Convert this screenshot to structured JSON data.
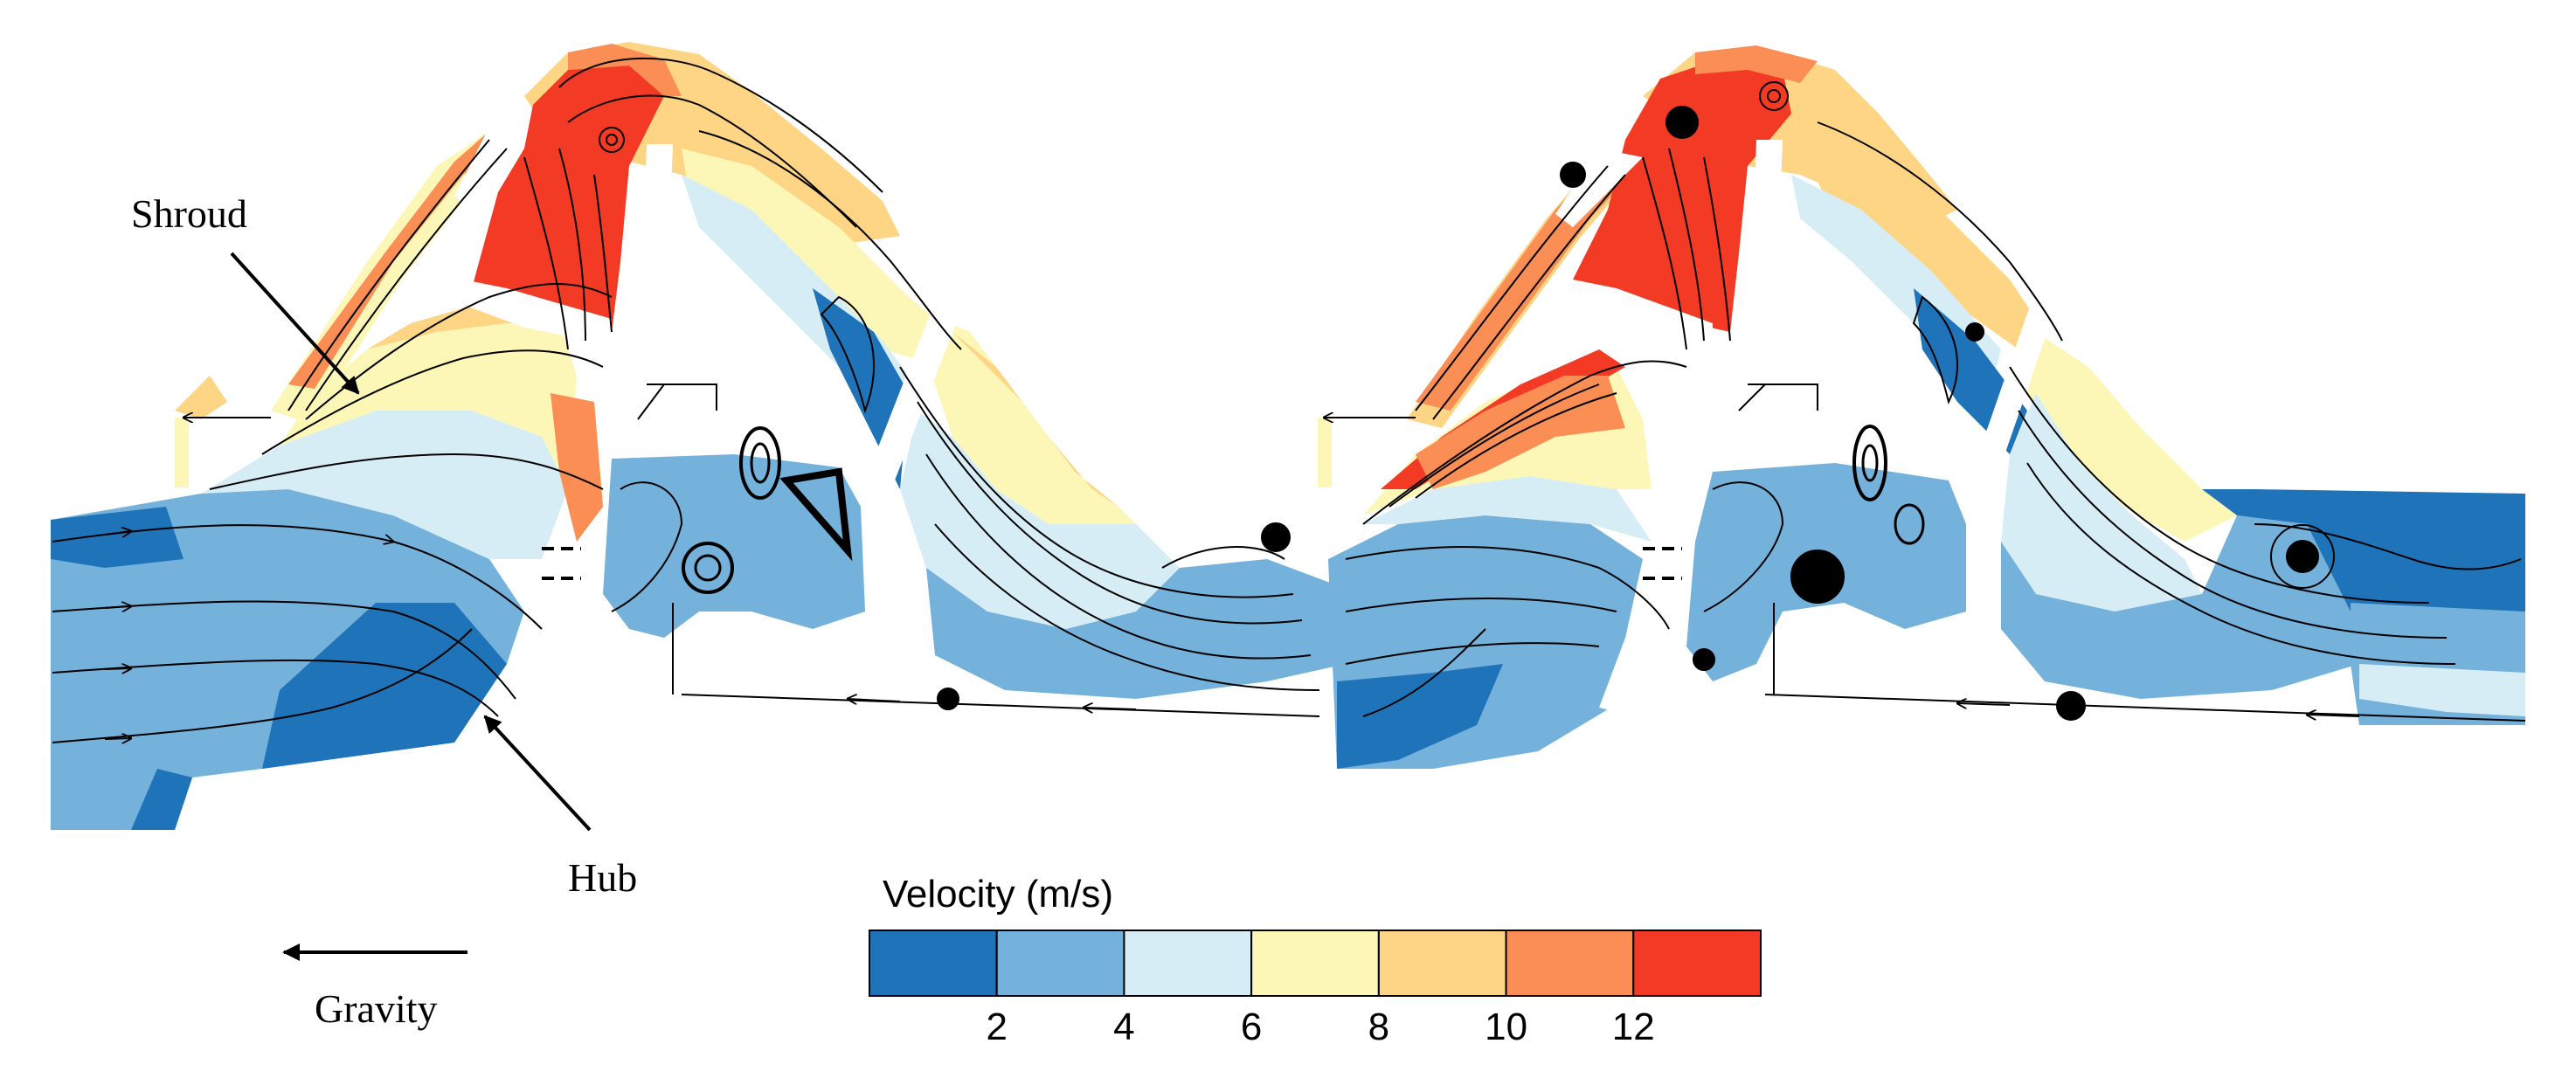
{
  "annotations": {
    "shroud": "Shroud",
    "hub": "Hub",
    "gravity": "Gravity"
  },
  "legend": {
    "title": "Velocity (m/s)",
    "bins": [
      {
        "from": 0,
        "to": 2,
        "color": "#1f73b8"
      },
      {
        "from": 2,
        "to": 4,
        "color": "#74b1db"
      },
      {
        "from": 4,
        "to": 6,
        "color": "#d6edf6"
      },
      {
        "from": 6,
        "to": 8,
        "color": "#fdf7b7"
      },
      {
        "from": 8,
        "to": 10,
        "color": "#fdd585"
      },
      {
        "from": 10,
        "to": 12,
        "color": "#fb8e55"
      },
      {
        "from": 12,
        "to": 14,
        "color": "#f23a24"
      }
    ],
    "ticks": [
      "2",
      "4",
      "6",
      "8",
      "10",
      "12"
    ]
  },
  "colors": {
    "streamline": "#000000",
    "background": "#ffffff"
  }
}
